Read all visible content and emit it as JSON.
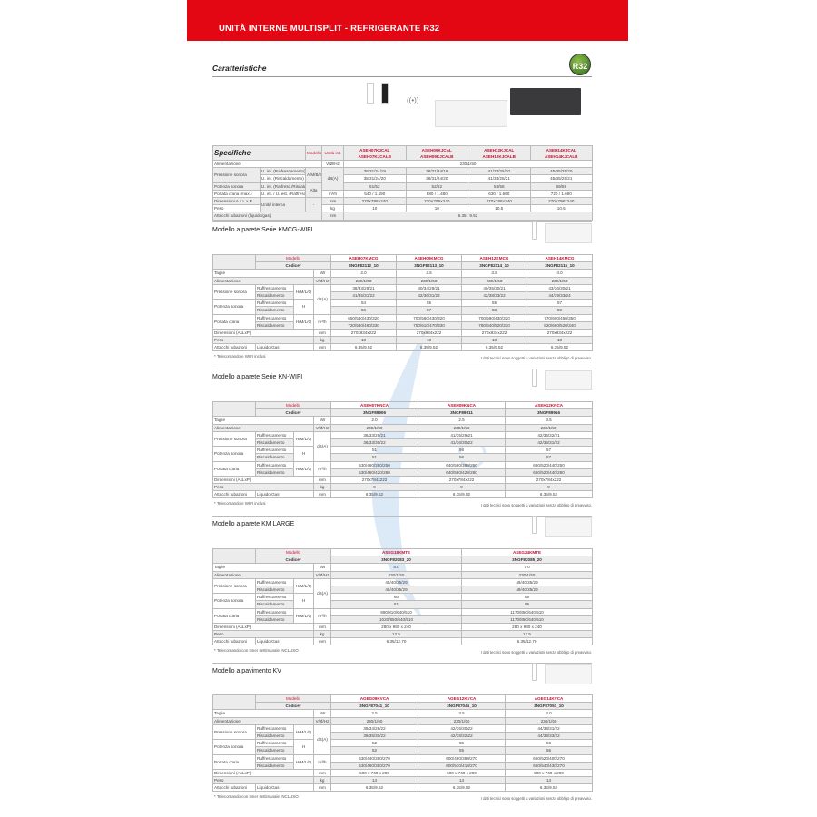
{
  "header": {
    "title": "UNITÀ INTERNE MULTISPLIT - REFRIGERANTE R32"
  },
  "features": {
    "title": "Caratteristiche",
    "badge": "R32",
    "wifi_label": "WiFi"
  },
  "colors": {
    "brand_red": "#e30613",
    "model_red": "#c8102e"
  },
  "spec": {
    "title": "Specifiche",
    "modello_label": "Modello",
    "unit_label": "Unità int.",
    "models": [
      "ASEH07KJCAL\nASEH07KJCALB",
      "ASEH09KJCAL\nASEH09KJCALB",
      "ASEH12KJCAL\nASEH12KJCALB",
      "ASEH14KJCAL\nASEH14KJCALB"
    ],
    "rows": [
      {
        "label": "Alimentazione",
        "sub": "",
        "mode": "",
        "unit": "V/Ø/Hz",
        "values": [
          "230/1/50"
        ]
      },
      {
        "label": "Pressione sonora",
        "sub": "U. int. (Raffrescamento)",
        "mode": "A/M/B/S",
        "unit": "dB(A)",
        "values": [
          "38/31/24/19",
          "38/31/24/19",
          "41/34/25/20",
          "45/35/25/20"
        ]
      },
      {
        "label": "Pressione sonora",
        "sub": "U. int. (Riscaldamento)",
        "mode": "A/M/B/S",
        "unit": "dB(A)",
        "values": [
          "38/31/24/20",
          "38/31/24/20",
          "41/34/25/21",
          "45/35/25/21"
        ]
      },
      {
        "label": "Potenza sonora",
        "sub": "U. int. (Raffresc./Riscald.)",
        "mode": "Alta",
        "unit": "dB(A)",
        "values": [
          "51/52",
          "52/52",
          "58/56",
          "59/59"
        ]
      },
      {
        "label": "Portata d'aria (max.)",
        "sub": "U. int. / U. est. (Raffresc.)",
        "mode": "Alta",
        "unit": "m³/h",
        "values": [
          "540 / 1.590",
          "580 / 1.480",
          "630 / 1.690",
          "720 / 1.690"
        ]
      },
      {
        "label": "Dimensioni A x L x P",
        "sub": "Unità interna",
        "mode": "-",
        "unit": "mm",
        "values": [
          "270×798×240",
          "270×798×240",
          "270×798×240",
          "270×798×240"
        ]
      },
      {
        "label": "Peso",
        "sub": "Unità interna",
        "mode": "-",
        "unit": "kg",
        "values": [
          "10",
          "10",
          "10.5",
          "10.5"
        ]
      },
      {
        "label": "Attacchi tubazioni (liquido/gas)",
        "sub": "",
        "mode": "",
        "unit": "mm",
        "values": [
          "6.35 / 9.52"
        ]
      }
    ]
  },
  "sections": [
    {
      "title": "Modello a parete Serie KMCG-WIFI",
      "modello_label": "Modello",
      "codice_label": "Codice*",
      "models": [
        "ASEH07KMCG",
        "ASEH09KMCG",
        "ASEH12KMCG",
        "ASEH14KMCG"
      ],
      "codes": [
        "3NGF82112_10",
        "3NGF82113_10",
        "3NGF82114_10",
        "3NGF82115_10"
      ],
      "rows": [
        {
          "label": "Taglie",
          "sub": "",
          "mode": "",
          "unit": "kW",
          "values": [
            "2.0",
            "2.5",
            "3.5",
            "4.0"
          ]
        },
        {
          "label": "Alimentazione",
          "sub": "",
          "mode": "",
          "unit": "V/Ø/Hz",
          "values": [
            "230/1/50",
            "230/1/50",
            "230/1/50",
            "230/1/50"
          ]
        },
        {
          "label": "Pressione sonora",
          "sub": "Raffrescamento",
          "mode": "H/M/L/Q",
          "unit": "dB(A)",
          "values": [
            "38/33/29/21",
            "40/34/29/21",
            "40/35/30/21",
            "43/36/30/21"
          ]
        },
        {
          "label": "Pressione sonora",
          "sub": "Riscaldamento",
          "mode": "H/M/L/Q",
          "unit": "dB(A)",
          "values": [
            "41/35/31/22",
            "42/36/31/22",
            "42/38/33/22",
            "44/39/33/24"
          ]
        },
        {
          "label": "Potenza sonora",
          "sub": "Raffrescamento",
          "mode": "H",
          "unit": "dB(A)",
          "values": [
            "54",
            "55",
            "55",
            "57"
          ]
        },
        {
          "label": "Potenza sonora",
          "sub": "Riscaldamento",
          "mode": "H",
          "unit": "dB(A)",
          "values": [
            "56",
            "57",
            "58",
            "59"
          ]
        },
        {
          "label": "Portata d'aria",
          "sub": "Raffrescamento",
          "mode": "H/M/L/Q",
          "unit": "m³/h",
          "values": [
            "650/540/430/320",
            "700/560/430/320",
            "700/590/430/320",
            "770/600/450/350"
          ]
        },
        {
          "label": "Portata d'aria",
          "sub": "Riscaldamento",
          "mode": "H/M/L/Q",
          "unit": "m³/h",
          "values": [
            "720/580/460/330",
            "750/610/470/330",
            "780/640/520/330",
            "820/660/520/340"
          ]
        },
        {
          "label": "Dimensioni (AxLxP)",
          "sub": "",
          "mode": "",
          "unit": "mm",
          "values": [
            "270x834x222",
            "270x834x222",
            "270x834x222",
            "270x834x222"
          ]
        },
        {
          "label": "Peso",
          "sub": "",
          "mode": "",
          "unit": "kg",
          "values": [
            "10",
            "10",
            "10",
            "10"
          ]
        },
        {
          "label": "Attacchi tubazioni",
          "sub": "Liquido/Gas",
          "mode": "",
          "unit": "mm",
          "values": [
            "6.35/9.52",
            "6.35/9.52",
            "6.35/9.52",
            "6.35/9.52"
          ]
        }
      ],
      "note": "* Telecomando e WIFI inclusi",
      "disclaimer": "I dati tecnici sono soggetti a variazioni senza obbligo di preavviso."
    },
    {
      "title": "Modello a parete Serie KN-WIFI",
      "modello_label": "Modello",
      "codice_label": "Codice*",
      "models": [
        "ASEH07KNCA",
        "ASEH09KNCA",
        "ASEH12KNCA"
      ],
      "codes": [
        "3NGF89906",
        "3NGF89911",
        "3NGF89916"
      ],
      "rows": [
        {
          "label": "Taglie",
          "sub": "",
          "mode": "",
          "unit": "kW",
          "values": [
            "2.0",
            "2.5",
            "3.5"
          ]
        },
        {
          "label": "Alimentazione",
          "sub": "",
          "mode": "",
          "unit": "V/Ø/Hz",
          "values": [
            "230/1/50",
            "230/1/50",
            "230/1/50"
          ]
        },
        {
          "label": "Pressione sonora",
          "sub": "Raffrescamento",
          "mode": "H/M/L/Q",
          "unit": "dB(A)",
          "values": [
            "36/33/29/21",
            "41/35/29/21",
            "42/36/32/21"
          ]
        },
        {
          "label": "Pressione sonora",
          "sub": "Riscaldamento",
          "mode": "H/M/L/Q",
          "unit": "dB(A)",
          "values": [
            "36/33/30/22",
            "41/36/30/22",
            "42/35/31/22"
          ]
        },
        {
          "label": "Potenza sonora",
          "sub": "Raffrescamento",
          "mode": "H",
          "unit": "dB(A)",
          "values": [
            "51",
            "56",
            "57"
          ]
        },
        {
          "label": "Potenza sonora",
          "sub": "Riscaldamento",
          "mode": "H",
          "unit": "dB(A)",
          "values": [
            "51",
            "56",
            "57"
          ]
        },
        {
          "label": "Portata d'aria",
          "sub": "Raffrescamento",
          "mode": "H/M/L/Q",
          "unit": "m³/h",
          "values": [
            "530/460/380/250",
            "640/580/380/250",
            "660/520/440/250"
          ]
        },
        {
          "label": "Portata d'aria",
          "sub": "Riscaldamento",
          "mode": "H/M/L/Q",
          "unit": "m³/h",
          "values": [
            "530/460/420/280",
            "640/580/420/280",
            "660/520/440/280"
          ]
        },
        {
          "label": "Dimensioni (AxLxP)",
          "sub": "",
          "mode": "",
          "unit": "mm",
          "values": [
            "270x784x222",
            "270x784x222",
            "270x784x222"
          ]
        },
        {
          "label": "Peso",
          "sub": "",
          "mode": "",
          "unit": "kg",
          "values": [
            "9",
            "9",
            "9"
          ]
        },
        {
          "label": "Attacchi tubazioni",
          "sub": "Liquido/Gas",
          "mode": "",
          "unit": "mm",
          "values": [
            "6.35/9.52",
            "6.35/9.52",
            "6.35/9.52"
          ]
        }
      ],
      "note": "* Telecomando e WIFI inclusi",
      "disclaimer": "I dati tecnici sono soggetti a variazioni senza obbligo di preavviso."
    },
    {
      "title": "Modello a parete KM LARGE",
      "modello_label": "Modello",
      "codice_label": "Codice*",
      "models": [
        "ASEG18KMTE",
        "ASEG24KMTE"
      ],
      "codes": [
        "3NGF82083_20",
        "3NGF82085_20"
      ],
      "rows": [
        {
          "label": "Taglie",
          "sub": "",
          "mode": "",
          "unit": "kW",
          "values": [
            "5.0",
            "7.0"
          ]
        },
        {
          "label": "Alimentazione",
          "sub": "",
          "mode": "",
          "unit": "V/Ø/Hz",
          "values": [
            "230/1/50",
            "230/1/50"
          ]
        },
        {
          "label": "Pressione sonora",
          "sub": "Raffrescamento",
          "mode": "H/M/L/Q",
          "unit": "dB(A)",
          "values": [
            "45/40/35/29",
            "49/40/35/29"
          ]
        },
        {
          "label": "Pressione sonora",
          "sub": "Riscaldamento",
          "mode": "H/M/L/Q",
          "unit": "dB(A)",
          "values": [
            "46/40/35/29",
            "49/40/35/29"
          ]
        },
        {
          "label": "Potenza sonora",
          "sub": "Raffrescamento",
          "mode": "H",
          "unit": "dB(A)",
          "values": [
            "60",
            "65"
          ]
        },
        {
          "label": "Potenza sonora",
          "sub": "Riscaldamento",
          "mode": "H",
          "unit": "dB(A)",
          "values": [
            "61",
            "65"
          ]
        },
        {
          "label": "Portata d'aria",
          "sub": "Raffrescamento",
          "mode": "H/M/L/Q",
          "unit": "m³/h",
          "values": [
            "980/810/640/510",
            "1170/850/640/510"
          ]
        },
        {
          "label": "Portata d'aria",
          "sub": "Riscaldamento",
          "mode": "H/M/L/Q",
          "unit": "m³/h",
          "values": [
            "1020/850/640/510",
            "1170/850/640/510"
          ]
        },
        {
          "label": "Dimensioni (AxLxP)",
          "sub": "",
          "mode": "",
          "unit": "mm",
          "values": [
            "280 x 980 x 240",
            "280 x 980 x 240"
          ]
        },
        {
          "label": "Peso",
          "sub": "",
          "mode": "",
          "unit": "kg",
          "values": [
            "12.5",
            "12.5"
          ]
        },
        {
          "label": "Attacchi tubazioni",
          "sub": "Liquido/Gas",
          "mode": "",
          "unit": "mm",
          "values": [
            "6.35/12.70",
            "6.35/12.70"
          ]
        }
      ],
      "note": "* Telecomando con timer settimanale INCLUSO",
      "disclaimer": "I dati tecnici sono soggetti a variazioni senza obbligo di preavviso."
    },
    {
      "title": "Modello a pavimento KV",
      "modello_label": "Modello",
      "codice_label": "Codice*",
      "models": [
        "AGEG09KVCA",
        "AGEG12KVCA",
        "AGEG14KVCA"
      ],
      "codes": [
        "3NGF87041_10",
        "3NGF87046_10",
        "3NGF87051_10"
      ],
      "rows": [
        {
          "label": "Taglie",
          "sub": "",
          "mode": "",
          "unit": "kW",
          "values": [
            "2.5",
            "3.5",
            "4.0"
          ]
        },
        {
          "label": "Alimentazione",
          "sub": "",
          "mode": "",
          "unit": "V/Ø/Hz",
          "values": [
            "230/1/50",
            "230/1/50",
            "230/1/50"
          ]
        },
        {
          "label": "Pressione sonora",
          "sub": "Raffrescamento",
          "mode": "H/M/L/Q",
          "unit": "dB(A)",
          "values": [
            "39/34/28/22",
            "42/36/30/22",
            "44/38/31/22"
          ]
        },
        {
          "label": "Pressione sonora",
          "sub": "Riscaldamento",
          "mode": "H/M/L/Q",
          "unit": "dB(A)",
          "values": [
            "39/35/30/22",
            "42/38/32/22",
            "44/39/33/22"
          ]
        },
        {
          "label": "Potenza sonora",
          "sub": "Raffrescamento",
          "mode": "H",
          "unit": "dB(A)",
          "values": [
            "52",
            "55",
            "56"
          ]
        },
        {
          "label": "Potenza sonora",
          "sub": "Riscaldamento",
          "mode": "H",
          "unit": "dB(A)",
          "values": [
            "52",
            "55",
            "56"
          ]
        },
        {
          "label": "Portata d'aria",
          "sub": "Raffrescamento",
          "mode": "H/M/L/Q",
          "unit": "m³/h",
          "values": [
            "530/440/360/270",
            "600/490/380/270",
            "650/520/400/270"
          ]
        },
        {
          "label": "Portata d'aria",
          "sub": "Riscaldamento",
          "mode": "H/M/L/Q",
          "unit": "m³/h",
          "values": [
            "530/460/380/270",
            "600/510/410/270",
            "650/540/430/270"
          ]
        },
        {
          "label": "Dimensioni (AxLxP)",
          "sub": "",
          "mode": "",
          "unit": "mm",
          "values": [
            "600 x 740 x 200",
            "600 x 740 x 200",
            "600 x 740 x 200"
          ]
        },
        {
          "label": "Peso",
          "sub": "",
          "mode": "",
          "unit": "kg",
          "values": [
            "14",
            "14",
            "14"
          ]
        },
        {
          "label": "Attacchi tubazioni",
          "sub": "Liquido/Gas",
          "mode": "",
          "unit": "mm",
          "values": [
            "6.35/9.52",
            "6.35/9.52",
            "6.35/9.52"
          ]
        }
      ],
      "note": "* Telecomando con timer settimanale INCLUSO",
      "disclaimer": "I dati tecnici sono soggetti a variazioni senza obbligo di preavviso."
    }
  ]
}
